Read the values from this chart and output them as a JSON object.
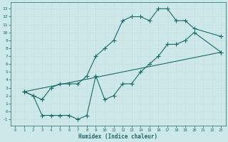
{
  "xlabel": "Humidex (Indice chaleur)",
  "bg_color": "#cce8e8",
  "grid_color": "#c8dede",
  "line_color": "#1a6b6b",
  "xlim": [
    -0.5,
    23.5
  ],
  "ylim": [
    -1.8,
    13.8
  ],
  "xticks": [
    0,
    1,
    2,
    3,
    4,
    5,
    6,
    7,
    8,
    9,
    10,
    11,
    12,
    13,
    14,
    15,
    16,
    17,
    18,
    19,
    20,
    21,
    22,
    23
  ],
  "yticks": [
    -1,
    0,
    1,
    2,
    3,
    4,
    5,
    6,
    7,
    8,
    9,
    10,
    11,
    12,
    13
  ],
  "line1_x": [
    1,
    2,
    3,
    4,
    5,
    6,
    7,
    8,
    9,
    10,
    11,
    12,
    13,
    14,
    15,
    16,
    17,
    18,
    19,
    20,
    23
  ],
  "line1_y": [
    2.5,
    2.0,
    1.5,
    3.0,
    3.5,
    3.5,
    3.5,
    4.5,
    7.0,
    8.0,
    9.0,
    11.5,
    12.0,
    12.0,
    11.5,
    13.0,
    13.0,
    11.5,
    11.5,
    10.5,
    9.5
  ],
  "line2_x": [
    1,
    2,
    3,
    4,
    5,
    6,
    7,
    8,
    9,
    10,
    11,
    12,
    13,
    14,
    15,
    16,
    17,
    18,
    19,
    20,
    23
  ],
  "line2_y": [
    2.5,
    2.0,
    -0.5,
    -0.5,
    -0.5,
    -0.5,
    -1.0,
    -0.5,
    4.5,
    1.5,
    2.0,
    3.5,
    3.5,
    5.0,
    6.0,
    7.0,
    8.5,
    8.5,
    9.0,
    10.0,
    7.5
  ],
  "line3_x": [
    1,
    23
  ],
  "line3_y": [
    2.5,
    7.5
  ]
}
